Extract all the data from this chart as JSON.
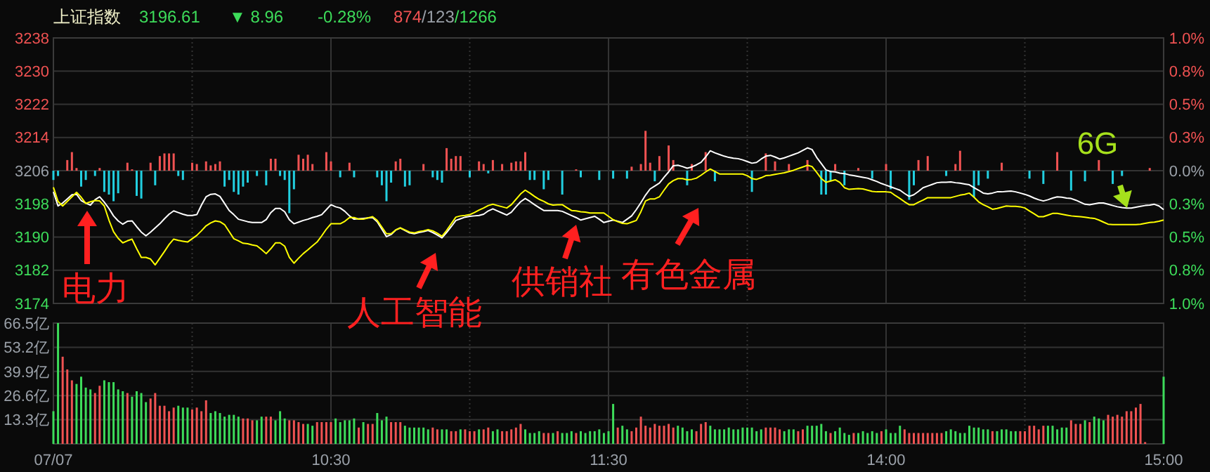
{
  "chart_data": [
    {
      "type": "line",
      "title": "上证指数",
      "annotations": [
        "3196.61",
        "▼ 8.96",
        "-0.28%",
        "874/123/1266",
        "电力",
        "人工智能",
        "供销社",
        "有色金属",
        "6G"
      ],
      "categories": [
        null,
        null,
        null,
        null,
        null,
        null,
        null,
        null,
        null,
        null,
        null,
        null,
        null,
        null,
        null,
        null,
        null,
        null,
        null,
        null,
        null,
        null,
        null,
        null,
        null,
        null,
        null,
        null,
        null,
        null,
        null,
        null,
        null,
        null,
        null,
        null,
        null,
        null,
        null,
        null,
        null,
        null,
        null,
        null,
        null,
        null,
        null,
        null,
        null,
        null,
        null,
        null,
        null,
        null,
        null,
        null,
        null,
        null,
        null,
        null,
        null,
        null,
        null,
        null,
        null,
        null,
        null,
        null,
        null,
        null,
        null,
        null,
        null,
        null,
        null,
        null,
        null,
        null,
        null,
        null,
        null,
        null,
        null,
        null,
        null,
        null,
        null,
        null,
        null,
        null,
        null,
        null,
        null,
        null,
        null,
        null,
        null,
        null,
        null,
        null,
        null,
        null,
        null,
        null,
        null,
        null,
        null,
        null,
        null,
        null,
        null,
        null,
        null,
        null,
        null,
        null,
        null,
        null,
        null,
        null,
        null,
        null,
        null,
        null,
        null,
        null,
        null,
        null,
        null,
        null,
        null,
        null,
        null,
        null,
        null,
        null,
        null,
        null,
        null,
        null,
        null,
        null,
        null,
        null,
        null,
        null,
        null,
        null,
        null,
        null,
        null,
        null,
        null,
        null,
        null,
        null,
        null,
        null,
        null,
        null,
        null,
        null,
        null,
        null,
        null,
        null,
        null,
        null,
        null,
        null,
        null,
        null,
        null,
        null,
        null,
        null,
        null,
        null,
        null,
        null,
        null,
        null,
        null,
        null,
        null,
        null,
        null,
        null,
        null,
        null,
        null,
        null,
        null,
        null,
        null,
        null,
        null,
        null,
        null,
        null,
        null,
        null,
        null,
        null,
        null,
        null,
        null,
        null,
        null,
        null,
        null,
        null,
        null,
        null,
        null,
        null,
        null,
        null,
        null,
        null,
        null,
        null,
        null,
        null,
        null,
        null,
        null,
        null,
        null,
        null,
        null,
        null,
        null,
        null,
        null,
        null,
        null,
        null,
        null,
        null,
        null
      ],
      "ylim": [
        3174,
        3238
      ],
      "yticks": [
        3174,
        3182,
        3190,
        3198,
        3206,
        3214,
        3222,
        3230,
        3238
      ],
      "y2lim": [
        -1,
        1
      ],
      "y2ticks": [
        {
          "value": -1,
          "label": "1.0%"
        },
        {
          "value": -0.75,
          "label": "0.8%"
        },
        {
          "value": -0.5,
          "label": "0.5%"
        },
        {
          "value": -0.25,
          "label": "0.3%"
        },
        {
          "value": 0,
          "label": "0.0%"
        },
        {
          "value": 0.25,
          "label": "0.3%"
        },
        {
          "value": 0.5,
          "label": "0.5%"
        },
        {
          "value": 0.75,
          "label": "0.8%"
        },
        {
          "value": 1,
          "label": "1.0%"
        }
      ],
      "grid": true,
      "series": [
        {
          "type": "bar",
          "axis": "y2",
          "color": "#f05252",
          "values": [
            null,
            null,
            null,
            0.08,
            0.14,
            0.02,
            null,
            null,
            null,
            null,
            0.02,
            null,
            null,
            null,
            null,
            null,
            0.06,
            0.01,
            null,
            null,
            null,
            0.06,
            null,
            0.11,
            0.13,
            0.13,
            0.13,
            null,
            null,
            null,
            0.06,
            0.05,
            null,
            0.07,
            0.04,
            0.05,
            0.07,
            null,
            null,
            null,
            null,
            null,
            null,
            null,
            null,
            null,
            null,
            0.09,
            0.09,
            null,
            null,
            null,
            null,
            0.12,
            0.09,
            0.12,
            0.05,
            null,
            null,
            0.14,
            0.07,
            null,
            null,
            null,
            0.06,
            null,
            null,
            null,
            null,
            null,
            null,
            null,
            null,
            null,
            0.07,
            0.09,
            null,
            null,
            null,
            null,
            0.05,
            null,
            null,
            null,
            null,
            0.17,
            0.09,
            0.11,
            0.11,
            null,
            null,
            null,
            0.07,
            0.05,
            null,
            0.08,
            null,
            0.05,
            null,
            0.06,
            0.07,
            0.07,
            0.14,
            null,
            null,
            null,
            null,
            null,
            null,
            null,
            null,
            null,
            null,
            0.01,
            null,
            null,
            null,
            null,
            null,
            null,
            null,
            null,
            null,
            null,
            null,
            0.03,
            null,
            0.05,
            0.3,
            0.06,
            null,
            0.11,
            null,
            0.19,
            0.08,
            null,
            null,
            null,
            0.05,
            null,
            null,
            0.14,
            null,
            null,
            null,
            null,
            null,
            null,
            null,
            null,
            null,
            null,
            null,
            null,
            0.13,
            null,
            0.07,
            null,
            null,
            0.05,
            null,
            null,
            null,
            0.08,
            null,
            null,
            null,
            null,
            null,
            0.05,
            null,
            null,
            null,
            null,
            0.02,
            null,
            null,
            null,
            null,
            null,
            0.05,
            null,
            null,
            null,
            null,
            null,
            null,
            0.08,
            null,
            0.11,
            null,
            null,
            null,
            null,
            null,
            0.05,
            0.15,
            null,
            null,
            null,
            null,
            null,
            null,
            null,
            null,
            0.06,
            null,
            null,
            null,
            null,
            null,
            null,
            null,
            null,
            null,
            null,
            null,
            0.14,
            null,
            null,
            null,
            null,
            null,
            null,
            null,
            null,
            0.08,
            null,
            null,
            null,
            null,
            null,
            null,
            null,
            null,
            null,
            null,
            0.02,
            null,
            null,
            null
          ]
        },
        {
          "type": "bar",
          "axis": "y2",
          "color": "#22cfe0",
          "values": [
            -0.07,
            -0.04,
            null,
            null,
            null,
            null,
            -0.12,
            -0.07,
            null,
            -0.04,
            null,
            -0.16,
            -0.18,
            -0.23,
            -0.17,
            null,
            null,
            null,
            -0.19,
            -0.21,
            null,
            null,
            -0.11,
            null,
            null,
            null,
            null,
            -0.04,
            -0.07,
            null,
            null,
            null,
            null,
            null,
            null,
            null,
            null,
            -0.12,
            -0.07,
            -0.16,
            -0.18,
            -0.12,
            -0.09,
            null,
            -0.04,
            null,
            -0.11,
            null,
            null,
            -0.04,
            -0.07,
            -0.32,
            -0.14,
            null,
            null,
            null,
            null,
            null,
            null,
            null,
            null,
            null,
            -0.05,
            null,
            null,
            -0.05,
            null,
            null,
            null,
            null,
            -0.05,
            -0.11,
            -0.23,
            -0.09,
            null,
            null,
            -0.12,
            -0.11,
            null,
            null,
            null,
            null,
            -0.05,
            -0.07,
            -0.09,
            null,
            null,
            null,
            null,
            null,
            -0.05,
            null,
            null,
            null,
            -0.02,
            null,
            null,
            null,
            null,
            null,
            null,
            null,
            null,
            -0.07,
            -0.07,
            null,
            -0.14,
            -0.07,
            null,
            null,
            -0.18,
            null,
            null,
            null,
            -0.05,
            null,
            null,
            null,
            -0.07,
            null,
            null,
            -0.06,
            null,
            null,
            -0.06,
            null,
            null,
            null,
            null,
            null,
            -0.08,
            null,
            null,
            null,
            null,
            null,
            null,
            -0.11,
            null,
            null,
            null,
            null,
            null,
            -0.08,
            null,
            null,
            null,
            null,
            null,
            null,
            null,
            -0.16,
            null,
            null,
            null,
            null,
            null,
            null,
            null,
            null,
            null,
            null,
            null,
            null,
            null,
            null,
            -0.18,
            -0.18,
            -0.08,
            null,
            null,
            -0.11,
            null,
            null,
            null,
            null,
            null,
            -0.06,
            null,
            null,
            null,
            -0.14,
            null,
            null,
            null,
            -0.22,
            -0.11,
            null,
            null,
            null,
            null,
            null,
            null,
            -0.04,
            null,
            null,
            null,
            null,
            null,
            -0.2,
            -0.11,
            null,
            -0.06,
            null,
            null,
            null,
            null,
            null,
            null,
            null,
            null,
            -0.06,
            null,
            null,
            -0.1,
            null,
            null,
            null,
            null,
            null,
            -0.15,
            null,
            null,
            -0.08,
            null,
            null,
            null,
            null,
            null,
            -0.1,
            null,
            -0.04,
            null,
            null,
            null,
            null,
            null,
            null,
            null,
            null,
            null
          ]
        },
        {
          "color": "#ffffff",
          "values": [
            3200.9,
            3197.5,
            3198.2,
            3199.2,
            3200.2,
            3200.3,
            3198.8,
            3198.2,
            3197.7,
            3199.0,
            3199.7,
            3198.4,
            3196.9,
            3195.1,
            3193.9,
            3193.1,
            3193.8,
            3193.9,
            3192.5,
            3191.2,
            3190.3,
            3191.2,
            3192.2,
            3193.2,
            3194.4,
            3195.5,
            3196.3,
            3195.9,
            3195.5,
            3195.2,
            3195.2,
            3195.4,
            3197.7,
            3199.7,
            3200.3,
            3200.4,
            3199.8,
            3198.1,
            3196.4,
            3195.4,
            3194.3,
            3194.0,
            3193.7,
            3193.5,
            3193.5,
            3193.5,
            3194.2,
            3195.9,
            3196.9,
            3196.9,
            3196.1,
            3194.2,
            3193.2,
            3193.6,
            3194.0,
            3194.3,
            3194.7,
            3195.0,
            3195.4,
            3196.6,
            3197.8,
            3197.3,
            3197.0,
            3196.2,
            3195.1,
            3194.3,
            3194.4,
            3194.5,
            3194.6,
            3194.7,
            3193.7,
            3191.9,
            3190.1,
            3190.6,
            3191.7,
            3192.2,
            3191.6,
            3191.0,
            3190.8,
            3191.1,
            3191.3,
            3191.6,
            3191.1,
            3190.5,
            3189.8,
            3191.1,
            3192.5,
            3194.0,
            3194.4,
            3194.8,
            3195.0,
            3195.1,
            3195.2,
            3195.5,
            3196.3,
            3196.8,
            3196.3,
            3195.8,
            3195.3,
            3196.0,
            3197.3,
            3198.5,
            3199.3,
            3198.6,
            3197.8,
            3197.1,
            3196.4,
            3196.4,
            3196.4,
            3196.4,
            3196.2,
            3195.7,
            3195.2,
            3194.7,
            3194.1,
            3194.4,
            3194.7,
            3195.0,
            3194.3,
            3193.5,
            3193.8,
            3194.1,
            3193.8,
            3193.5,
            3194.3,
            3195.1,
            3196.6,
            3198.3,
            3200.1,
            3201.6,
            3202.3,
            3203.0,
            3204.4,
            3205.7,
            3207.2,
            3207.3,
            3207.0,
            3206.6,
            3206.9,
            3207.4,
            3208.0,
            3209.3,
            3210.8,
            3210.3,
            3209.9,
            3209.5,
            3209.2,
            3209.0,
            3208.9,
            3208.6,
            3208.2,
            3207.8,
            3208.0,
            3208.8,
            3209.5,
            3209.7,
            3209.3,
            3208.8,
            3209.1,
            3209.5,
            3209.9,
            3210.3,
            3210.9,
            3211.5,
            3211.1,
            3209.2,
            3207.7,
            3206.2,
            3205.8,
            3205.7,
            3205.4,
            3205.3,
            3205.0,
            3204.8,
            3204.6,
            3204.4,
            3204.2,
            3203.8,
            3203.4,
            3202.9,
            3202.5,
            3202.1,
            3201.7,
            3201.3,
            3200.5,
            3199.8,
            3200.2,
            3201.0,
            3201.9,
            3202.3,
            3202.7,
            3203.1,
            3203.2,
            3203.2,
            3203.3,
            3203.1,
            3203.0,
            3202.8,
            3202.6,
            3201.9,
            3201.3,
            3200.6,
            3200.4,
            3200.6,
            3200.9,
            3200.9,
            3201.0,
            3201.1,
            3200.9,
            3200.6,
            3200.3,
            3199.9,
            3199.4,
            3199.0,
            3198.7,
            3199.0,
            3199.4,
            3199.7,
            3199.6,
            3199.4,
            3199.3,
            3198.9,
            3198.4,
            3197.9,
            3197.8,
            3198.0,
            3198.2,
            3198.2,
            3197.9,
            3197.6,
            3197.3,
            3197.1,
            3197.0,
            3197.0,
            3197.2,
            3197.4,
            3197.6,
            3197.7,
            3197.9,
            3197.5,
            3196.6
          ]
        },
        {
          "color": "#ffff00",
          "values": [
            3202.0,
            3198.6,
            3197.5,
            3198.6,
            3199.7,
            3200.8,
            3199.6,
            3198.1,
            3198.5,
            3198.8,
            3198.7,
            3197.5,
            3194.1,
            3191.3,
            3189.7,
            3188.6,
            3189.1,
            3189.5,
            3187.2,
            3185.1,
            3185.1,
            3184.7,
            3183.3,
            3184.9,
            3186.5,
            3188.2,
            3189.5,
            3189.2,
            3189.0,
            3188.8,
            3189.6,
            3190.4,
            3191.5,
            3192.7,
            3193.4,
            3193.9,
            3193.7,
            3193.0,
            3191.3,
            3189.6,
            3189.1,
            3188.5,
            3188.4,
            3188.1,
            3187.9,
            3187.0,
            3186.0,
            3187.2,
            3188.6,
            3188.6,
            3187.8,
            3185.1,
            3183.7,
            3184.9,
            3186.0,
            3186.9,
            3187.9,
            3188.8,
            3190.3,
            3191.9,
            3193.2,
            3193.2,
            3193.2,
            3193.8,
            3194.7,
            3194.7,
            3194.3,
            3194.3,
            3194.6,
            3194.9,
            3194.0,
            3192.4,
            3190.8,
            3190.8,
            3191.7,
            3192.2,
            3191.7,
            3191.2,
            3191.0,
            3191.3,
            3191.5,
            3191.8,
            3191.5,
            3190.9,
            3190.2,
            3191.6,
            3193.2,
            3194.8,
            3195.1,
            3195.2,
            3195.4,
            3195.9,
            3196.5,
            3197.0,
            3197.6,
            3197.9,
            3197.6,
            3197.3,
            3197.0,
            3197.8,
            3199.1,
            3200.4,
            3201.3,
            3200.6,
            3199.8,
            3199.1,
            3198.6,
            3198.0,
            3197.7,
            3197.8,
            3197.8,
            3197.1,
            3196.4,
            3196.3,
            3196.1,
            3196.0,
            3195.8,
            3195.8,
            3195.8,
            3195.8,
            3195.0,
            3194.2,
            3193.7,
            3193.3,
            3193.2,
            3193.6,
            3194.0,
            3196.1,
            3198.7,
            3199.2,
            3199.2,
            3199.7,
            3201.3,
            3202.8,
            3203.6,
            3204.1,
            3204.1,
            3203.8,
            3203.9,
            3204.2,
            3204.9,
            3205.7,
            3206.4,
            3205.8,
            3205.2,
            3205.2,
            3205.2,
            3205.2,
            3205.2,
            3205.2,
            3204.8,
            3204.1,
            3203.9,
            3204.3,
            3204.8,
            3204.9,
            3205.1,
            3205.3,
            3205.5,
            3205.8,
            3206.1,
            3206.5,
            3206.9,
            3207.3,
            3207.0,
            3205.6,
            3204.1,
            3203.2,
            3203.5,
            3203.8,
            3203.2,
            3201.9,
            3201.5,
            3201.6,
            3201.7,
            3201.6,
            3201.3,
            3201.0,
            3200.9,
            3200.9,
            3200.9,
            3200.8,
            3200.0,
            3199.3,
            3198.5,
            3197.8,
            3197.8,
            3198.4,
            3198.9,
            3199.5,
            3199.5,
            3199.5,
            3199.5,
            3199.5,
            3199.5,
            3199.8,
            3200.1,
            3200.3,
            3200.6,
            3199.6,
            3198.5,
            3197.8,
            3197.3,
            3196.7,
            3196.9,
            3197.2,
            3197.5,
            3197.4,
            3197.4,
            3197.3,
            3197.0,
            3196.3,
            3195.6,
            3194.9,
            3194.9,
            3195.3,
            3195.7,
            3195.7,
            3195.5,
            3195.3,
            3195.1,
            3195.0,
            3194.9,
            3194.8,
            3194.6,
            3194.5,
            3194.1,
            3193.6,
            3193.1,
            3193.0,
            3193.0,
            3193.0,
            3193.0,
            3193.0,
            3193.0,
            3193.1,
            3193.3,
            3193.5,
            3193.6,
            3193.8,
            3194.1
          ]
        }
      ]
    },
    {
      "type": "bar",
      "categories": [
        "07/07",
        null,
        null,
        null,
        null,
        null,
        null,
        null,
        null,
        null,
        null,
        null,
        null,
        null,
        null,
        null,
        null,
        null,
        null,
        null,
        null,
        null,
        null,
        null,
        null,
        null,
        null,
        null,
        null,
        null,
        null,
        null,
        null,
        null,
        null,
        null,
        null,
        null,
        null,
        null,
        null,
        null,
        null,
        null,
        null,
        null,
        null,
        null,
        null,
        null,
        null,
        null,
        null,
        null,
        null,
        null,
        null,
        null,
        null,
        null,
        "10:30",
        null,
        null,
        null,
        null,
        null,
        null,
        null,
        null,
        null,
        null,
        null,
        null,
        null,
        null,
        null,
        null,
        null,
        null,
        null,
        null,
        null,
        null,
        null,
        null,
        null,
        null,
        null,
        null,
        null,
        null,
        null,
        null,
        null,
        null,
        null,
        null,
        null,
        null,
        null,
        null,
        null,
        null,
        null,
        null,
        null,
        null,
        null,
        null,
        null,
        null,
        null,
        null,
        null,
        null,
        null,
        null,
        null,
        null,
        null,
        "11:30",
        null,
        null,
        null,
        null,
        null,
        null,
        null,
        null,
        null,
        null,
        null,
        null,
        null,
        null,
        null,
        null,
        null,
        null,
        null,
        null,
        null,
        null,
        null,
        null,
        null,
        null,
        null,
        null,
        null,
        null,
        null,
        null,
        null,
        null,
        null,
        null,
        null,
        null,
        null,
        null,
        null,
        null,
        null,
        null,
        null,
        null,
        null,
        null,
        null,
        null,
        null,
        null,
        null,
        null,
        null,
        null,
        null,
        null,
        null,
        "14:00",
        null,
        null,
        null,
        null,
        null,
        null,
        null,
        null,
        null,
        null,
        null,
        null,
        null,
        null,
        null,
        null,
        null,
        null,
        null,
        null,
        null,
        null,
        null,
        null,
        null,
        null,
        null,
        null,
        null,
        null,
        null,
        null,
        null,
        null,
        null,
        null,
        null,
        null,
        null,
        null,
        null,
        null,
        null,
        null,
        null,
        null,
        null,
        null,
        null,
        null,
        null,
        null,
        null,
        null,
        null,
        null,
        null,
        null,
        null,
        "15:00"
      ],
      "values": [
        18,
        66.5,
        48,
        41,
        35,
        33,
        37,
        31,
        30,
        28,
        32,
        35,
        34,
        34,
        30,
        29,
        28,
        26,
        29,
        28,
        23,
        25,
        28,
        21,
        21,
        18,
        20,
        21,
        20,
        20,
        19,
        20,
        18,
        24,
        17,
        18,
        17,
        15,
        16,
        16,
        15,
        14,
        14,
        13,
        13,
        15,
        15,
        15,
        13,
        18,
        14,
        13,
        13,
        12,
        11,
        11,
        10,
        12,
        12,
        12,
        12,
        14,
        12,
        13,
        13,
        14,
        9,
        12,
        11,
        11,
        17,
        13,
        15,
        12,
        12,
        12,
        10,
        9,
        9,
        9,
        9,
        8,
        9,
        8,
        8,
        8,
        7,
        7,
        8,
        8,
        7,
        7,
        8,
        8,
        9,
        7,
        8,
        7,
        7,
        8,
        9,
        11,
        8,
        6,
        6,
        7,
        6,
        6,
        6,
        7,
        6,
        6,
        7,
        6,
        7,
        6,
        7,
        7,
        8,
        6,
        7,
        22,
        9,
        10,
        8,
        7,
        9,
        15,
        10,
        9,
        11,
        10,
        10,
        11,
        9,
        10,
        9,
        7,
        8,
        7,
        11,
        12,
        10,
        8,
        8,
        8,
        9,
        8,
        8,
        9,
        9,
        9,
        7,
        8,
        9,
        9,
        9,
        8,
        7,
        8,
        8,
        7,
        8,
        10,
        10,
        10,
        11,
        7,
        6,
        7,
        9,
        6,
        5,
        6,
        6,
        7,
        6,
        7,
        6,
        7,
        8,
        6,
        6,
        10,
        8,
        6,
        6,
        6,
        6,
        6,
        6,
        6,
        6,
        7,
        8,
        7,
        6,
        6,
        10,
        9,
        9,
        8,
        8,
        7,
        7,
        8,
        8,
        7,
        7,
        7,
        7,
        10,
        10,
        8,
        10,
        10,
        10,
        8,
        9,
        9,
        13,
        11,
        11,
        13,
        12,
        15,
        14,
        13,
        16,
        15,
        16,
        15,
        18,
        18,
        20,
        22,
        1,
        null,
        null,
        null,
        37
      ],
      "colors": [
        "#3ddc5a",
        "#3ddc5a",
        "#f05252",
        "#f05252",
        "#f05252",
        "#3ddc5a",
        "#3ddc5a",
        "#3ddc5a",
        "#3ddc5a",
        "#f05252",
        "#f05252",
        "#3ddc5a",
        "#3ddc5a",
        "#3ddc5a",
        "#3ddc5a",
        "#3ddc5a",
        "#f05252",
        "#3ddc5a",
        "#3ddc5a",
        "#3ddc5a",
        "#3ddc5a",
        "#f05252",
        "#f05252",
        "#f05252",
        "#f05252",
        "#f05252",
        "#f05252",
        "#3ddc5a",
        "#3ddc5a",
        "#3ddc5a",
        "#f05252",
        "#f05252",
        "#f05252",
        "#f05252",
        "#3ddc5a",
        "#3ddc5a",
        "#3ddc5a",
        "#3ddc5a",
        "#3ddc5a",
        "#3ddc5a",
        "#3ddc5a",
        "#f05252",
        "#f05252",
        "#f05252",
        "#3ddc5a",
        "#3ddc5a",
        "#f05252",
        "#f05252",
        "#3ddc5a",
        "#3ddc5a",
        "#3ddc5a",
        "#f05252",
        "#f05252",
        "#f05252",
        "#f05252",
        "#3ddc5a",
        "#3ddc5a",
        "#f05252",
        "#f05252",
        "#f05252",
        "#f05252",
        "#3ddc5a",
        "#3ddc5a",
        "#3ddc5a",
        "#3ddc5a",
        "#3ddc5a",
        "#f05252",
        "#3ddc5a",
        "#f05252",
        "#f05252",
        "#3ddc5a",
        "#3ddc5a",
        "#3ddc5a",
        "#f05252",
        "#f05252",
        "#f05252",
        "#3ddc5a",
        "#3ddc5a",
        "#3ddc5a",
        "#3ddc5a",
        "#3ddc5a",
        "#3ddc5a",
        "#f05252",
        "#f05252",
        "#3ddc5a",
        "#3ddc5a",
        "#f05252",
        "#f05252",
        "#3ddc5a",
        "#f05252",
        "#f05252",
        "#f05252",
        "#3ddc5a",
        "#f05252",
        "#f05252",
        "#3ddc5a",
        "#3ddc5a",
        "#f05252",
        "#f05252",
        "#f05252",
        "#f05252",
        "#f05252",
        "#3ddc5a",
        "#3ddc5a",
        "#3ddc5a",
        "#3ddc5a",
        "#f05252",
        "#f05252",
        "#3ddc5a",
        "#f05252",
        "#3ddc5a",
        "#3ddc5a",
        "#3ddc5a",
        "#f05252",
        "#3ddc5a",
        "#3ddc5a",
        "#3ddc5a",
        "#3ddc5a",
        "#3ddc5a",
        "#3ddc5a",
        "#3ddc5a",
        "#3ddc5a",
        "#f05252",
        "#3ddc5a",
        "#3ddc5a",
        "#f05252",
        "#f05252",
        "#f05252",
        "#f05252",
        "#f05252",
        "#f05252",
        "#f05252",
        "#f05252",
        "#f05252",
        "#f05252",
        "#3ddc5a",
        "#3ddc5a",
        "#3ddc5a",
        "#3ddc5a",
        "#f05252",
        "#f05252",
        "#f05252",
        "#3ddc5a",
        "#3ddc5a",
        "#3ddc5a",
        "#3ddc5a",
        "#3ddc5a",
        "#3ddc5a",
        "#3ddc5a",
        "#3ddc5a",
        "#3ddc5a",
        "#3ddc5a",
        "#3ddc5a",
        "#3ddc5a",
        "#f05252",
        "#f05252",
        "#f05252",
        "#f05252",
        "#3ddc5a",
        "#3ddc5a",
        "#3ddc5a",
        "#f05252",
        "#f05252",
        "#3ddc5a",
        "#3ddc5a",
        "#3ddc5a",
        "#3ddc5a",
        "#3ddc5a",
        "#f05252",
        "#3ddc5a",
        "#3ddc5a",
        "#3ddc5a",
        "#3ddc5a",
        "#f05252",
        "#3ddc5a",
        "#3ddc5a",
        "#3ddc5a",
        "#3ddc5a",
        "#3ddc5a",
        "#f05252",
        "#3ddc5a",
        "#3ddc5a",
        "#3ddc5a",
        "#3ddc5a",
        "#f05252",
        "#f05252",
        "#f05252",
        "#f05252",
        "#f05252",
        "#f05252",
        "#f05252",
        "#f05252",
        "#f05252",
        "#3ddc5a",
        "#3ddc5a",
        "#3ddc5a",
        "#3ddc5a",
        "#3ddc5a",
        "#3ddc5a",
        "#3ddc5a",
        "#3ddc5a",
        "#3ddc5a",
        "#3ddc5a",
        "#f05252",
        "#3ddc5a",
        "#3ddc5a",
        "#3ddc5a",
        "#3ddc5a",
        "#3ddc5a",
        "#f05252",
        "#f05252",
        "#f05252",
        "#f05252",
        "#f05252",
        "#f05252",
        "#3ddc5a",
        "#3ddc5a",
        "#3ddc5a",
        "#3ddc5a",
        "#3ddc5a",
        "#f05252",
        "#f05252",
        "#f05252",
        "#3ddc5a",
        "#f05252",
        "#3ddc5a",
        "#3ddc5a",
        "#3ddc5a",
        "#f05252",
        "#f05252",
        "#f05252",
        "#f05252",
        "#f05252",
        "#f05252",
        "#f05252",
        "#f05252",
        "#f05252",
        null,
        null,
        null,
        "#3ddc5a"
      ],
      "ylim": [
        0,
        66.5
      ],
      "yticks": [
        {
          "value": 13.3,
          "label": "13.3亿"
        },
        {
          "value": 26.6,
          "label": "26.6亿"
        },
        {
          "value": 39.9,
          "label": "39.9亿"
        },
        {
          "value": 53.2,
          "label": "53.2亿"
        },
        {
          "value": 66.5,
          "label": "66.5亿"
        }
      ],
      "grid": true
    }
  ]
}
